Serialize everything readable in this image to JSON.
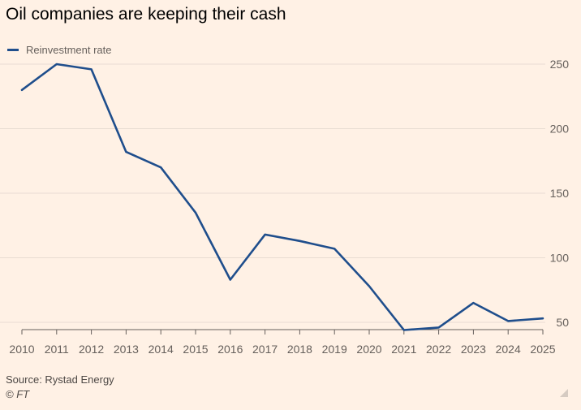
{
  "title": "Oil companies are keeping their cash",
  "source": "Source: Rystad Energy",
  "credit": "© FT",
  "colors": {
    "background": "#fff1e5",
    "line": "#1f4e8c",
    "grid": "#e8dcd2",
    "axis": "#66605c"
  },
  "icons": {
    "resize": "resize-corner-icon"
  },
  "chart_data": {
    "type": "line",
    "x": [
      2010,
      2011,
      2012,
      2013,
      2014,
      2015,
      2016,
      2017,
      2018,
      2019,
      2020,
      2021,
      2022,
      2023,
      2024,
      2025
    ],
    "series": [
      {
        "name": "Reinvestment rate",
        "values": [
          230,
          250,
          246,
          182,
          170,
          135,
          83,
          118,
          113,
          107,
          78,
          44,
          46,
          65,
          51,
          53
        ]
      }
    ],
    "ylim": [
      45,
      250
    ],
    "yticks": [
      50,
      100,
      150,
      200,
      250
    ],
    "xticks": [
      2010,
      2011,
      2012,
      2013,
      2014,
      2015,
      2016,
      2017,
      2018,
      2019,
      2020,
      2021,
      2022,
      2023,
      2024,
      2025
    ],
    "y_axis_position": "right",
    "grid": "horizontal",
    "legend_position": "top-left"
  }
}
